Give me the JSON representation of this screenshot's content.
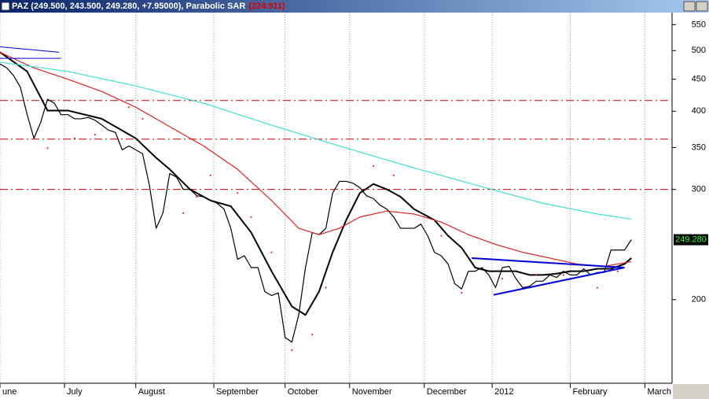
{
  "chart_data": {
    "type": "line",
    "title": "PAZ (249.500, 243.500, 249.280, +7.95000)",
    "indicator": ", Parabolic SAR",
    "indicator_value": "(224.911)",
    "log_scale": true,
    "ylim": [
      147,
      575
    ],
    "yticks": [
      550,
      500,
      450,
      400,
      350,
      300,
      200
    ],
    "xlim": [
      0,
      99
    ],
    "xticks": [
      {
        "value": 0,
        "label": "une"
      },
      {
        "value": 9.5,
        "label": "July"
      },
      {
        "value": 20,
        "label": "August"
      },
      {
        "value": 31.5,
        "label": "September"
      },
      {
        "value": 42,
        "label": "October"
      },
      {
        "value": 51.5,
        "label": "November"
      },
      {
        "value": 62.5,
        "label": "December"
      },
      {
        "value": 72.5,
        "label": "2012"
      },
      {
        "value": 84,
        "label": "February"
      },
      {
        "value": 95,
        "label": "March"
      }
    ],
    "grid": true,
    "last_value_label": "249.280",
    "series": [
      {
        "color": "#000000",
        "style": "thin",
        "values": [
          476,
          469,
          456,
          437,
          395,
          362,
          384,
          418,
          412,
          395,
          395,
          389,
          389,
          391,
          387,
          380,
          373,
          370,
          347,
          352,
          347,
          342,
          305,
          260,
          275,
          318,
          314,
          300,
          300,
          293,
          292,
          288,
          285,
          279,
          260,
          232,
          235,
          225,
          225,
          206,
          203,
          205,
          174,
          171,
          189,
          225,
          256,
          254,
          260,
          296,
          309,
          309,
          307,
          302,
          293,
          290,
          283,
          279,
          271,
          260,
          260,
          260,
          264,
          253,
          238,
          235,
          228,
          212,
          208,
          222,
          222,
          225,
          219,
          209,
          225,
          226,
          216,
          209,
          210,
          214,
          214,
          219,
          217,
          222,
          219,
          219,
          224,
          219,
          221,
          221,
          240,
          240,
          240,
          249.28
        ]
      },
      {
        "color": "#000000",
        "style": "thick",
        "x": [
          0,
          4,
          7,
          10,
          15,
          20,
          23,
          25,
          28,
          31,
          34,
          37,
          40,
          43,
          45,
          47,
          49,
          51,
          53,
          55,
          57,
          59,
          61,
          64,
          66,
          68,
          70,
          72,
          74,
          76,
          78,
          80,
          82,
          84,
          86,
          88,
          90,
          92,
          93
        ],
        "values": [
          497,
          463,
          401,
          401,
          389,
          362,
          337,
          323,
          300,
          288,
          282,
          256,
          222,
          195,
          189,
          206,
          238,
          268,
          296,
          306,
          300,
          292,
          279,
          268,
          253,
          242,
          225,
          222,
          222,
          222,
          219,
          219,
          220,
          222,
          222,
          224,
          224,
          228,
          233
        ]
      },
      {
        "color": "#e02020",
        "style": "thin",
        "x": [
          0,
          5,
          10,
          15,
          20,
          25,
          30,
          35,
          40,
          44,
          47,
          50,
          53,
          57,
          61,
          65,
          69,
          73,
          77,
          81,
          85,
          89,
          93
        ],
        "values": [
          497,
          469,
          450,
          430,
          406,
          378,
          352,
          323,
          288,
          260,
          254,
          260,
          271,
          277,
          274,
          266,
          254,
          245,
          238,
          233,
          228,
          226,
          230
        ]
      },
      {
        "color": "#40e0d0",
        "style": "thin",
        "x": [
          0,
          10,
          20,
          30,
          40,
          50,
          60,
          70,
          80,
          88,
          93
        ],
        "values": [
          479,
          463,
          439,
          412,
          380,
          352,
          327,
          305,
          285,
          274,
          269
        ]
      },
      {
        "color": "#ff0000",
        "style": "dots",
        "x": [
          7,
          11,
          14,
          19,
          21,
          27,
          29,
          31,
          35,
          37,
          40,
          43,
          46,
          48,
          55,
          58,
          65,
          68,
          74,
          79,
          83,
          88,
          91
        ],
        "values": [
          349,
          362,
          367,
          406,
          389,
          275,
          292,
          316,
          296,
          271,
          238,
          166,
          176,
          209,
          327,
          316,
          253,
          205,
          216,
          219,
          219,
          209,
          222
        ]
      }
    ],
    "levels": {
      "color": "#cc0000",
      "values": [
        416,
        361,
        300
      ]
    },
    "trendlines": {
      "color": "#0000dd",
      "lines": [
        {
          "x": [
            0,
            8.7
          ],
          "values": [
            507,
            497
          ]
        },
        {
          "x": [
            0,
            9
          ],
          "values": [
            486,
            486
          ]
        },
        {
          "x": [
            69.5,
            92
          ],
          "values": [
            233,
            225
          ]
        },
        {
          "x": [
            72.7,
            92
          ],
          "values": [
            203.5,
            225
          ]
        }
      ]
    }
  }
}
